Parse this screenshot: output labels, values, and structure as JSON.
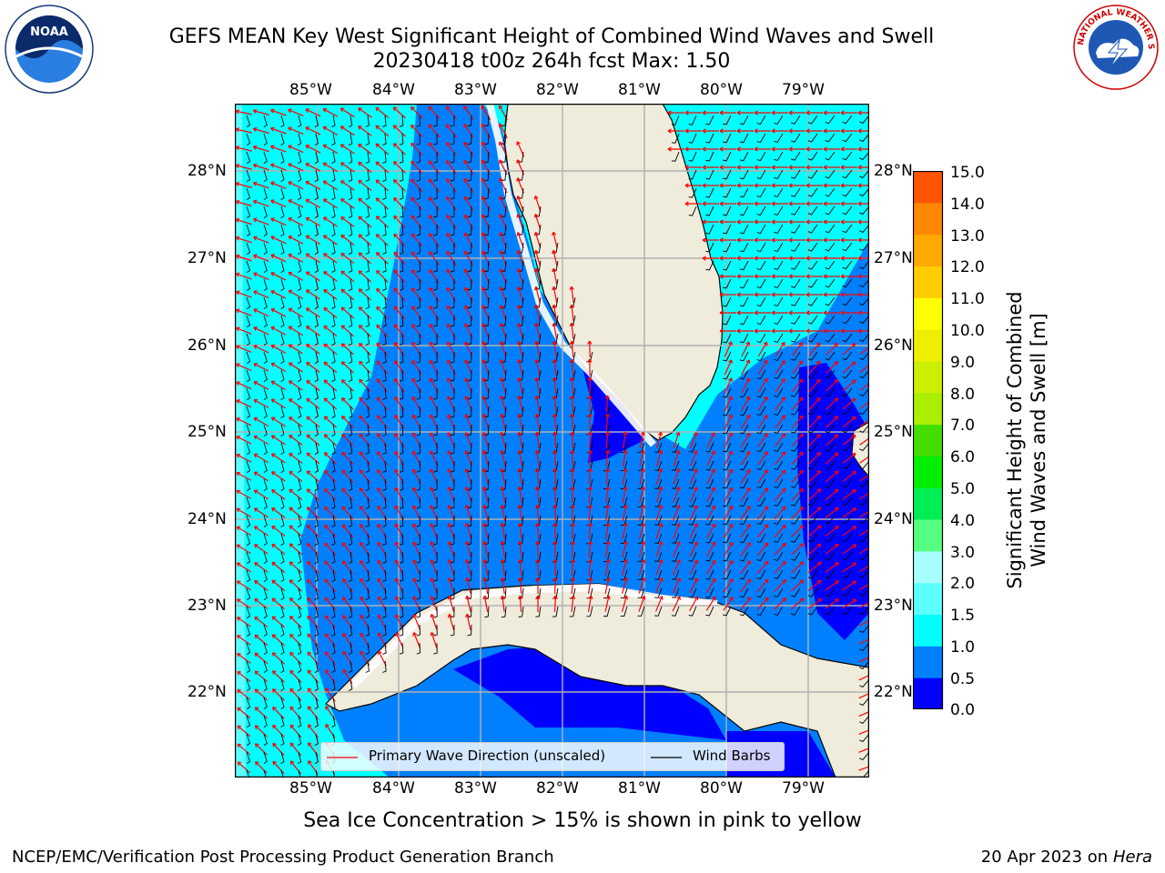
{
  "header": {
    "title_line1": "GEFS MEAN Key West Significant Height of Combined Wind Waves and Swell",
    "title_line2": "20230418 t00z 264h fcst   Max: 1.50"
  },
  "logos": {
    "left": "NOAA",
    "right": "NATIONAL WEATHER SERVICE"
  },
  "map": {
    "lon_labels": [
      "85°W",
      "84°W",
      "83°W",
      "82°W",
      "81°W",
      "80°W",
      "79°W"
    ],
    "lat_labels": [
      "28°N",
      "27°N",
      "26°N",
      "25°N",
      "24°N",
      "23°N",
      "22°N"
    ],
    "colors": {
      "land": "#efecdc",
      "grid": "#b0b0b0",
      "level_0_05": "#0000ff",
      "level_05_1": "#0080ff",
      "level_1_15": "#00ffff",
      "level_15_2": "#5cffff",
      "wave_arrow": "#ff0000",
      "wind_barb": "#000000"
    }
  },
  "legend": {
    "wave_label": "Primary Wave Direction (unscaled)",
    "wind_label": "Wind Barbs"
  },
  "colorbar": {
    "label_line1": "Significant Height of Combined",
    "label_line2": "Wind Waves and Swell [m]",
    "ticks": [
      "15.0",
      "14.0",
      "13.0",
      "12.0",
      "11.0",
      "10.0",
      "9.0",
      "8.0",
      "7.0",
      "6.0",
      "5.0",
      "4.0",
      "3.0",
      "2.0",
      "1.5",
      "1.0",
      "0.5",
      "0.0"
    ],
    "colors": [
      "#0000ff",
      "#0080ff",
      "#00ffff",
      "#5cffff",
      "#a8ffff",
      "#55ff80",
      "#00ee55",
      "#00ee00",
      "#44dd00",
      "#aaee00",
      "#ccee00",
      "#eeee00",
      "#ffff00",
      "#ffcc00",
      "#ffaa00",
      "#ff8800",
      "#ff5500",
      "#ff2200",
      "#ff0000"
    ]
  },
  "notes": {
    "sea_ice": "Sea Ice Concentration > 15% is shown in pink to yellow"
  },
  "footer": {
    "left": "NCEP/EMC/Verification Post Processing Product Generation Branch",
    "right_prefix": "20 Apr 2023 on ",
    "right_host": "Hera"
  }
}
